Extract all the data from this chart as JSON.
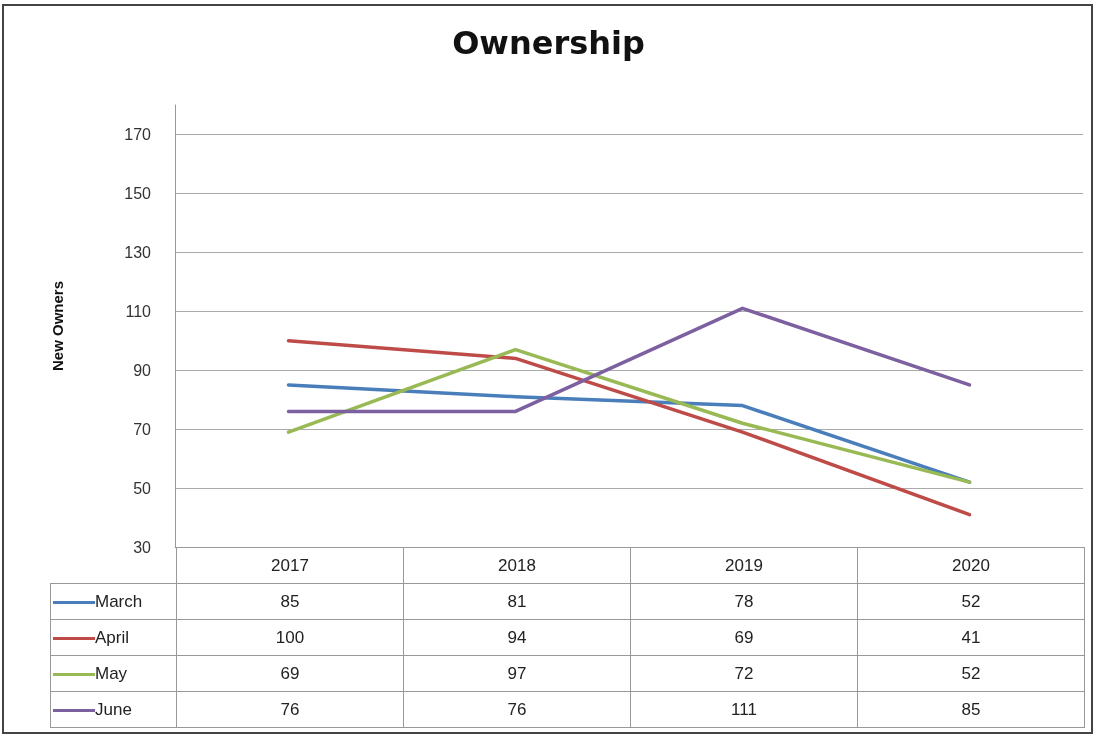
{
  "chart_data": {
    "type": "line",
    "title": "Ownership",
    "ylabel": "New Owners",
    "categories": [
      "2017",
      "2018",
      "2019",
      "2020"
    ],
    "series": [
      {
        "name": "March",
        "color": "#4a7ebb",
        "values": [
          85,
          81,
          78,
          52
        ]
      },
      {
        "name": "April",
        "color": "#be4b48",
        "values": [
          100,
          94,
          69,
          41
        ]
      },
      {
        "name": "May",
        "color": "#98b954",
        "values": [
          69,
          97,
          72,
          52
        ]
      },
      {
        "name": "June",
        "color": "#7d60a0",
        "values": [
          76,
          76,
          111,
          85
        ]
      }
    ],
    "ylim": [
      30,
      180
    ],
    "yticks": [
      30,
      50,
      70,
      90,
      110,
      130,
      150,
      170
    ],
    "grid": "y",
    "legend": "bottom",
    "data_labels": true,
    "marker": "none",
    "line_style": "solid"
  }
}
